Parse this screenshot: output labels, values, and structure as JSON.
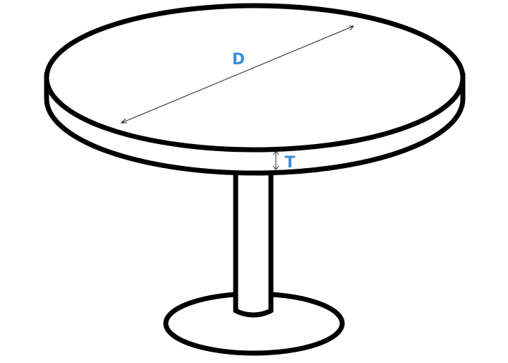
{
  "diagram": {
    "labels": {
      "diameter": "D",
      "thickness": "T"
    },
    "colors": {
      "outline": "#000000",
      "fill": "#ffffff",
      "dimension_line": "#222222",
      "label": "#3a8fd8"
    }
  }
}
